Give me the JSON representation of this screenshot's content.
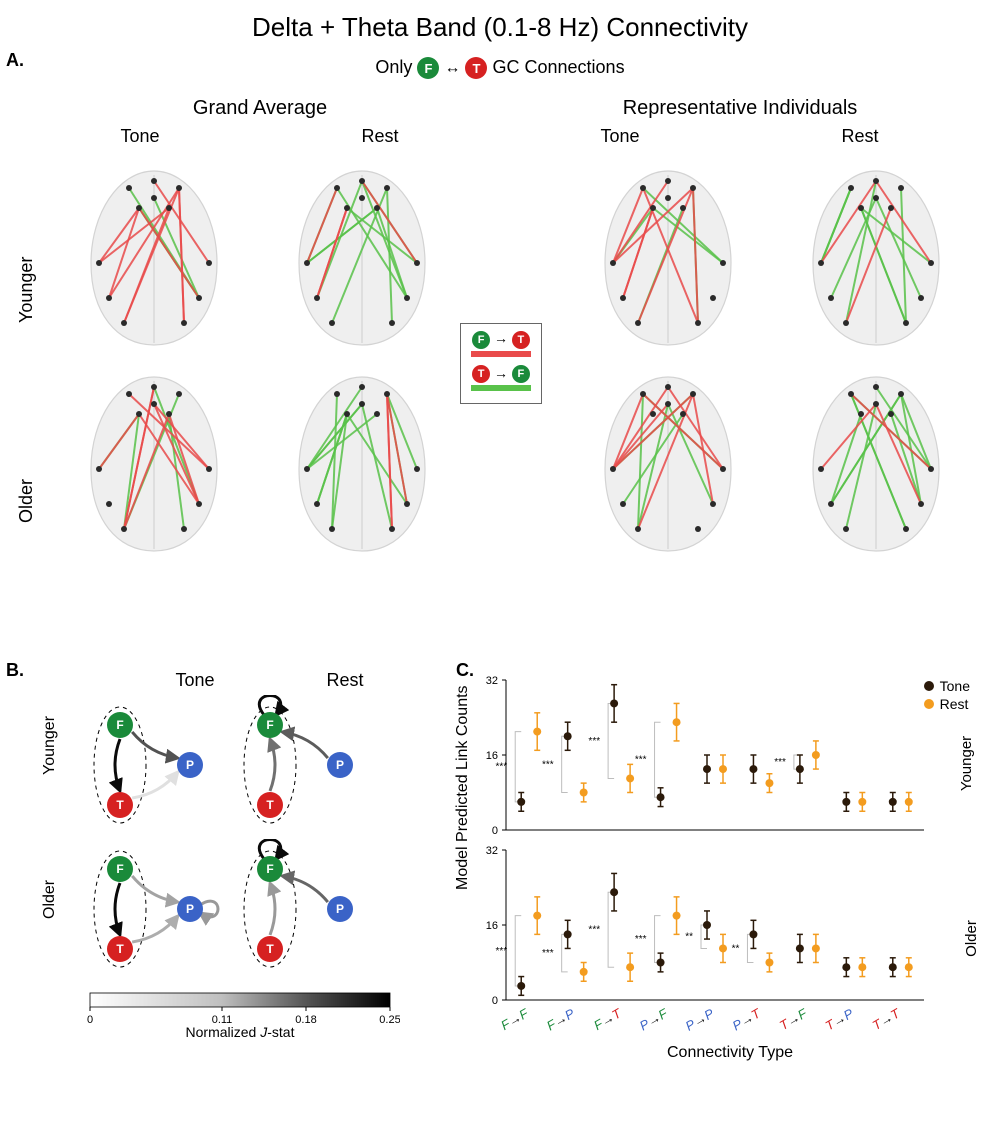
{
  "title": "Delta + Theta Band (0.1-8 Hz) Connectivity",
  "panels": {
    "A": "A.",
    "B": "B.",
    "C": "C."
  },
  "subtitle": {
    "prefix": "Only",
    "suffix": "GC Connections"
  },
  "nodes": {
    "F": {
      "label": "F",
      "color": "#1a8a3a"
    },
    "T": {
      "label": "T",
      "color": "#d62121"
    },
    "P": {
      "label": "P",
      "color": "#3a63c7"
    }
  },
  "sectionA": {
    "left_header": "Grand Average",
    "right_header": "Representative Individuals",
    "conditions": [
      "Tone",
      "Rest",
      "Tone",
      "Rest"
    ],
    "row_labels": [
      "Younger",
      "Older"
    ],
    "legend": {
      "ft_label": "F → T",
      "tf_label": "T → F",
      "ft_color": "#e94b4b",
      "tf_color": "#59c24a"
    },
    "brain_fill": "#e8e8e8",
    "brain_stroke": "#bcbcbc",
    "electrode_color": "#2a2a2a",
    "line_opacity": 0.85,
    "brains": {
      "younger_tone_ga": {
        "red_lines": 10,
        "green_lines": 4,
        "seed": 11
      },
      "younger_rest_ga": {
        "red_lines": 4,
        "green_lines": 11,
        "seed": 22
      },
      "older_tone_ga": {
        "red_lines": 9,
        "green_lines": 5,
        "seed": 33
      },
      "older_rest_ga": {
        "red_lines": 3,
        "green_lines": 12,
        "seed": 44
      },
      "younger_tone_ind": {
        "red_lines": 8,
        "green_lines": 5,
        "seed": 55
      },
      "younger_rest_ind": {
        "red_lines": 3,
        "green_lines": 10,
        "seed": 66
      },
      "older_tone_ind": {
        "red_lines": 8,
        "green_lines": 6,
        "seed": 77
      },
      "older_rest_ind": {
        "red_lines": 3,
        "green_lines": 11,
        "seed": 88
      }
    }
  },
  "sectionB": {
    "col_headers": [
      "Tone",
      "Rest"
    ],
    "row_labels": [
      "Younger",
      "Older"
    ],
    "jstat": {
      "label": "Normalized J-stat",
      "ticks": [
        0,
        0.11,
        0.18,
        0.25
      ],
      "gradient": [
        "#ffffff",
        "#bfbfbf",
        "#545454",
        "#000000"
      ]
    },
    "diagrams": {
      "younger_tone": {
        "edges": [
          {
            "from": "F",
            "to": "T",
            "w": 0.24
          },
          {
            "from": "F",
            "to": "P",
            "w": 0.17
          },
          {
            "from": "T",
            "to": "P",
            "w": 0.03
          }
        ],
        "ellipse": [
          "F",
          "T"
        ]
      },
      "younger_rest": {
        "edges": [
          {
            "from": "F",
            "to": "F",
            "w": 0.24
          },
          {
            "from": "T",
            "to": "F",
            "w": 0.14
          },
          {
            "from": "P",
            "to": "F",
            "w": 0.16
          }
        ],
        "ellipse": [
          "F",
          "T"
        ]
      },
      "older_tone": {
        "edges": [
          {
            "from": "F",
            "to": "T",
            "w": 0.24
          },
          {
            "from": "F",
            "to": "P",
            "w": 0.09
          },
          {
            "from": "T",
            "to": "P",
            "w": 0.08
          },
          {
            "from": "P",
            "to": "P",
            "w": 0.1
          }
        ],
        "ellipse": [
          "F",
          "T"
        ]
      },
      "older_rest": {
        "edges": [
          {
            "from": "F",
            "to": "F",
            "w": 0.24
          },
          {
            "from": "T",
            "to": "F",
            "w": 0.1
          },
          {
            "from": "P",
            "to": "F",
            "w": 0.15
          }
        ],
        "ellipse": [
          "F",
          "T"
        ]
      }
    }
  },
  "sectionC": {
    "ylabel": "Model Predicted Link Counts",
    "xlabel": "Connectivity Type",
    "row_labels": [
      "Younger",
      "Older"
    ],
    "ylim": [
      0,
      32
    ],
    "yticks": [
      0,
      16,
      32
    ],
    "legend": {
      "tone": "Tone",
      "rest": "Rest"
    },
    "colors": {
      "tone": "#2b1a0a",
      "rest": "#f39c1f",
      "grid": "#bdbdbd"
    },
    "categories": [
      {
        "from": "F",
        "to": "F"
      },
      {
        "from": "F",
        "to": "P"
      },
      {
        "from": "F",
        "to": "T"
      },
      {
        "from": "P",
        "to": "F"
      },
      {
        "from": "P",
        "to": "P"
      },
      {
        "from": "P",
        "to": "T"
      },
      {
        "from": "T",
        "to": "F"
      },
      {
        "from": "T",
        "to": "P"
      },
      {
        "from": "T",
        "to": "T"
      }
    ],
    "data": {
      "younger": {
        "tone": [
          6,
          20,
          27,
          7,
          13,
          13,
          13,
          6,
          6
        ],
        "rest": [
          21,
          8,
          11,
          23,
          13,
          10,
          16,
          6,
          6
        ],
        "tone_err": [
          2,
          3,
          4,
          2,
          3,
          3,
          3,
          2,
          2
        ],
        "rest_err": [
          4,
          2,
          3,
          4,
          3,
          2,
          3,
          2,
          2
        ],
        "sig": [
          "***",
          "***",
          "***",
          "***",
          "",
          "",
          "***",
          "",
          ""
        ]
      },
      "older": {
        "tone": [
          3,
          14,
          23,
          8,
          16,
          14,
          11,
          7,
          7
        ],
        "rest": [
          18,
          6,
          7,
          18,
          11,
          8,
          11,
          7,
          7
        ],
        "tone_err": [
          2,
          3,
          4,
          2,
          3,
          3,
          3,
          2,
          2
        ],
        "rest_err": [
          4,
          2,
          3,
          4,
          3,
          2,
          3,
          2,
          2
        ],
        "sig": [
          "***",
          "***",
          "***",
          "***",
          "**",
          "**",
          "",
          "",
          ""
        ]
      }
    }
  }
}
